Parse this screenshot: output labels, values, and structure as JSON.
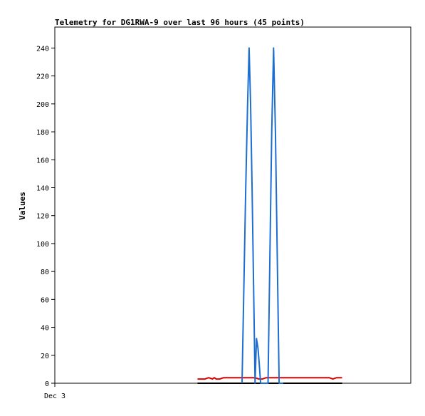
{
  "chart_data": {
    "type": "line",
    "title": "Telemetry for DG1RWA-9 over last 96 hours (45 points)",
    "xlabel": "",
    "ylabel": "Values",
    "x_tick_labels": [
      "Dec 3"
    ],
    "xlim": [
      0,
      96
    ],
    "ylim": [
      0,
      255
    ],
    "y_ticks": [
      0,
      20,
      40,
      60,
      80,
      100,
      120,
      140,
      160,
      180,
      200,
      220,
      240
    ],
    "grid": false,
    "legend": "none",
    "series": [
      {
        "color": "#000000",
        "x": [
          38.5,
          77.5
        ],
        "y": [
          0,
          0
        ]
      },
      {
        "color": "#e00000",
        "x": [
          38.5,
          40.5,
          41.5,
          42.5,
          43.0,
          43.5,
          44.5,
          45.5,
          46.5,
          48.0,
          50.0,
          52.0,
          54.0,
          55.0,
          56.0,
          57.0,
          58.0,
          60.0,
          62.0,
          64.0,
          66.0,
          68.0,
          70.0,
          72.0,
          74.0,
          75.0,
          76.0,
          77.5
        ],
        "y": [
          3,
          3,
          4,
          3,
          4,
          3,
          3,
          4,
          4,
          4,
          4,
          4,
          4,
          3,
          3,
          4,
          4,
          4,
          4,
          4,
          4,
          4,
          4,
          4,
          4,
          3,
          4,
          4
        ]
      },
      {
        "color": "#1c6fd0",
        "x": [
          50.5,
          51.0,
          51.5,
          52.0,
          52.4,
          52.8,
          53.2,
          53.6,
          54.0,
          54.4,
          54.8,
          55.1,
          55.5,
          56.0,
          57.5,
          58.0,
          58.5,
          59.0,
          59.5,
          60.0,
          60.5,
          61.0,
          61.3,
          61.6
        ],
        "y": [
          0,
          70,
          140,
          200,
          240,
          200,
          140,
          70,
          0,
          32,
          25,
          15,
          0,
          0,
          0,
          90,
          180,
          240,
          180,
          90,
          0,
          0,
          0,
          0
        ]
      }
    ]
  }
}
